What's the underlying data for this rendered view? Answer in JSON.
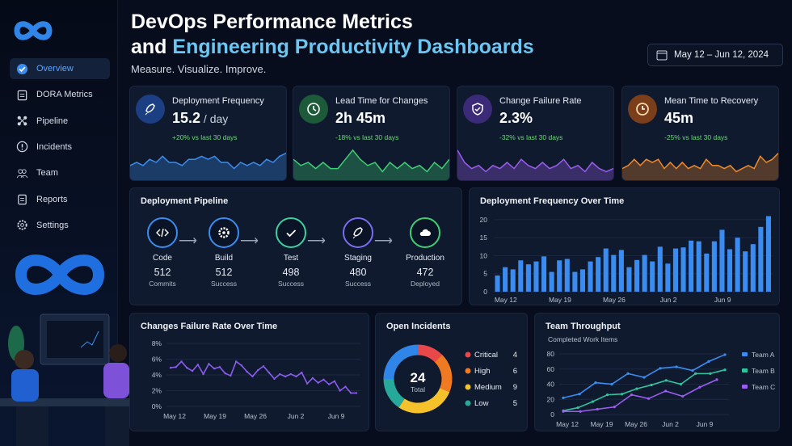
{
  "sidebar": {
    "items": [
      {
        "label": "Overview",
        "icon": "check-circle-icon",
        "active": true
      },
      {
        "label": "DORA Metrics",
        "icon": "calendar-icon"
      },
      {
        "label": "Pipeline",
        "icon": "pipeline-icon"
      },
      {
        "label": "Incidents",
        "icon": "alert-circle-icon"
      },
      {
        "label": "Team",
        "icon": "team-icon"
      },
      {
        "label": "Reports",
        "icon": "clipboard-icon"
      },
      {
        "label": "Settings",
        "icon": "gear-icon"
      }
    ]
  },
  "header": {
    "title_line1": "DevOps Performance Metrics",
    "title_and": "and ",
    "title_accent": "Engineering Productivity Dashboards",
    "subtitle": "Measure. Visualize. Improve.",
    "date_range": "May 12 – Jun 12, 2024"
  },
  "kpis": [
    {
      "title": "Deployment Frequency",
      "value": "15.2",
      "unit": " / day",
      "change": "+20% vs last 30 days",
      "color": "#3b8cf0",
      "icon": "rocket-icon",
      "spark": [
        4,
        5,
        4,
        6,
        5,
        7,
        5,
        5,
        4,
        6,
        6,
        7,
        6,
        7,
        5,
        5,
        3,
        5,
        4,
        5,
        4,
        6,
        5,
        7,
        8
      ]
    },
    {
      "title": "Lead Time for Changes",
      "value": "2h 45m",
      "unit": "",
      "change": "-18% vs last 30 days",
      "color": "#3fcf73",
      "icon": "clock-icon",
      "spark": [
        6,
        4,
        5,
        3,
        5,
        3,
        3,
        6,
        9,
        6,
        4,
        5,
        2,
        5,
        3,
        5,
        3,
        4,
        2,
        5,
        3,
        6
      ]
    },
    {
      "title": "Change Failure Rate",
      "value": "2.3%",
      "unit": "",
      "change": "-32% vs last 30 days",
      "color": "#9b5cf0",
      "icon": "shield-check-icon",
      "spark": [
        9,
        5,
        3,
        4,
        2,
        4,
        3,
        5,
        3,
        6,
        4,
        3,
        5,
        3,
        4,
        6,
        3,
        4,
        2,
        5,
        3,
        2,
        3
      ]
    },
    {
      "title": "Mean Time to Recovery",
      "value": "45m",
      "unit": "",
      "change": "-25% vs last 30 days",
      "color": "#f0892a",
      "icon": "stopwatch-icon",
      "spark": [
        3,
        4,
        6,
        4,
        6,
        5,
        6,
        3,
        5,
        3,
        5,
        3,
        4,
        3,
        6,
        4,
        4,
        3,
        4,
        2,
        3,
        4,
        3,
        7,
        5,
        6,
        8
      ]
    }
  ],
  "pipeline": {
    "title": "Deployment Pipeline",
    "stages": [
      {
        "name": "Code",
        "value": "512",
        "sub": "Commits",
        "color": "#3b8cf0",
        "icon": "code-icon"
      },
      {
        "name": "Build",
        "value": "512",
        "sub": "Success",
        "color": "#3b8cf0",
        "icon": "gear-icon"
      },
      {
        "name": "Test",
        "value": "498",
        "sub": "Success",
        "color": "#3fcfa0",
        "icon": "check-icon"
      },
      {
        "name": "Staging",
        "value": "480",
        "sub": "Success",
        "color": "#7a6cf0",
        "icon": "rocket-icon"
      },
      {
        "name": "Production",
        "value": "472",
        "sub": "Deployed",
        "color": "#3fcf73",
        "icon": "cloud-icon"
      }
    ]
  },
  "chart_data": [
    {
      "id": "deploy",
      "type": "bar",
      "title": "Deployment Frequency Over Time",
      "ylim": [
        0,
        22
      ],
      "yticks": [
        0,
        5,
        10,
        15,
        20
      ],
      "xticks": [
        "May 12",
        "May 19",
        "May 26",
        "Jun 2",
        "Jun 9"
      ],
      "color": "#3b8cf0",
      "values": [
        4.5,
        6.8,
        6.2,
        8.7,
        7.6,
        8.4,
        9.8,
        5.5,
        8.7,
        9.1,
        5.5,
        6.2,
        8.4,
        9.6,
        12,
        10.2,
        11.6,
        6.8,
        8.8,
        10.2,
        8.4,
        12.5,
        7.8,
        12,
        12.3,
        14.2,
        14,
        10.6,
        14,
        17.2,
        11.8,
        15,
        11.2,
        13.2,
        18,
        21
      ]
    },
    {
      "id": "cfr",
      "type": "line",
      "title": "Changes Failure Rate Over Time",
      "ylim": [
        0,
        8
      ],
      "yticks": [
        "0%",
        "2%",
        "4%",
        "6%",
        "8%"
      ],
      "xticks": [
        "May 12",
        "May 19",
        "May 26",
        "Jun 2",
        "Jun 9"
      ],
      "color": "#8b5cf0",
      "values": [
        4.9,
        5.0,
        5.7,
        4.9,
        4.5,
        5.3,
        4.1,
        5.4,
        4.8,
        5.0,
        4.2,
        3.9,
        5.7,
        5.2,
        4.4,
        3.8,
        4.6,
        5.1,
        4.3,
        3.5,
        4.1,
        3.8,
        4.1,
        3.8,
        4.3,
        2.9,
        3.6,
        3.0,
        3.4,
        2.8,
        3.2,
        2.0,
        2.5,
        1.7,
        1.7
      ]
    },
    {
      "id": "incidents",
      "type": "pie",
      "title": "Open Incidents",
      "total": "24",
      "total_label": "Total",
      "slices": [
        {
          "label": "Critical",
          "value": 4,
          "color": "#e8484a"
        },
        {
          "label": "High",
          "value": 6,
          "color": "#f07a22"
        },
        {
          "label": "Medium",
          "value": 9,
          "color": "#f5c22b"
        },
        {
          "label": "Low",
          "value": 5,
          "color": "#26a89a"
        }
      ],
      "rest_color": "#2f86e8"
    },
    {
      "id": "throughput",
      "type": "line",
      "title": "Team Throughput",
      "subtitle": "Completed Work Items",
      "ylim": [
        0,
        80
      ],
      "yticks": [
        0,
        20,
        40,
        60,
        80
      ],
      "xticks": [
        "May 12",
        "May 19",
        "May 26",
        "Jun 2",
        "Jun 9"
      ],
      "series": [
        {
          "name": "Team A",
          "color": "#3b8cf0",
          "values": [
            22,
            27,
            42,
            40,
            54,
            49,
            61,
            63,
            58,
            70,
            79
          ]
        },
        {
          "name": "Team B",
          "color": "#2fc4a0",
          "values": [
            5,
            9,
            17,
            26,
            27,
            34,
            39,
            45,
            40,
            54,
            54,
            59
          ]
        },
        {
          "name": "Team C",
          "color": "#9b5cf0",
          "values": [
            4,
            4,
            7,
            10,
            26,
            21,
            31,
            24,
            36,
            46
          ]
        }
      ]
    }
  ]
}
